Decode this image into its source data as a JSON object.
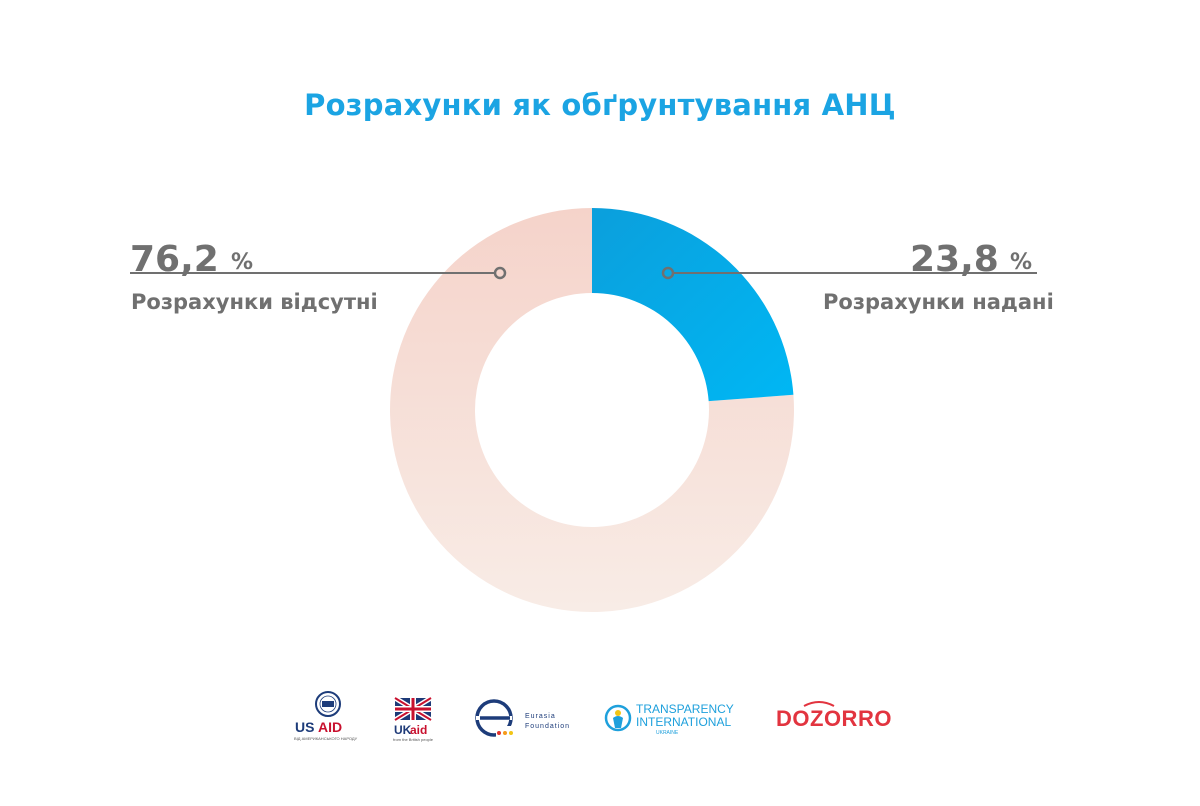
{
  "title": "Розрахунки як обґрунтування АНЦ",
  "chart_data": {
    "type": "pie",
    "categories": [
      "Розрахунки відсутні",
      "Розрахунки надані"
    ],
    "values": [
      76.2,
      23.8
    ],
    "value_labels": [
      "76,2",
      "23,8"
    ],
    "unit": "%",
    "donut": true,
    "colors": [
      "#f6d9d0",
      "#0aa8e6"
    ],
    "legend": "none"
  },
  "logos": {
    "usaid": {
      "name": "USAID",
      "tagline": "ВІД АМЕРИКАНСЬКОГО НАРОДУ"
    },
    "ukaid": {
      "name_uk": "UK",
      "name_aid": "aid",
      "tagline": "from the British people"
    },
    "eurasia": {
      "line1": "Eurasia",
      "line2": "Foundation"
    },
    "transparency": {
      "line1": "TRANSPARENCY",
      "line2": "INTERNATIONAL",
      "line3": "UKRAINE"
    },
    "dozorro": {
      "name": "DOZORRO"
    }
  }
}
